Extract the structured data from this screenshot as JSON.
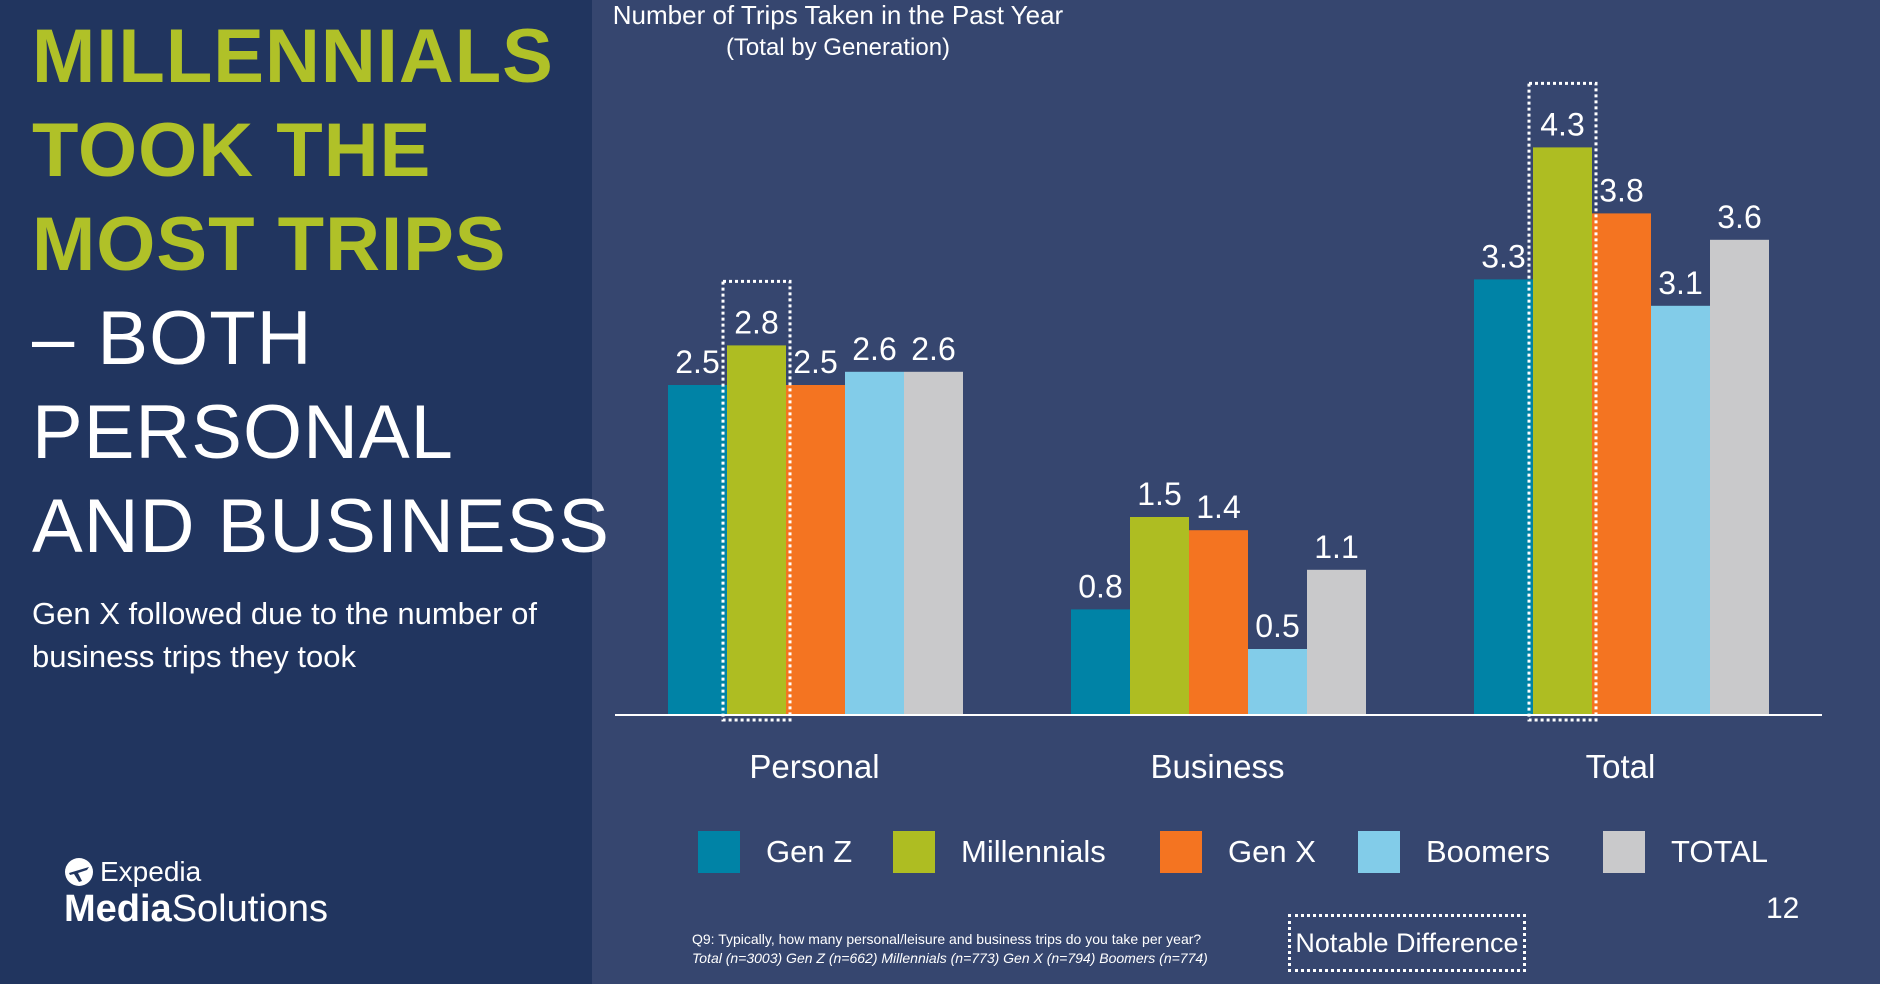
{
  "headline": {
    "accent_lines": [
      "MILLENNIALS",
      "TOOK THE",
      "MOST TRIPS"
    ],
    "white_lines": [
      "– BOTH",
      "PERSONAL",
      "AND BUSINESS"
    ]
  },
  "subtext": "Gen X followed due to the number of business trips they took",
  "logo": {
    "brand": "Expedia",
    "product_bold": "Media",
    "product_light": "Solutions"
  },
  "page_number": "12",
  "footnote": {
    "line1": "Q9: Typically, how many personal/leisure and business trips do you take per year?",
    "line2": "Total (n=3003) Gen Z (n=662) Millennials (n=773) Gen X (n=794) Boomers (n=774)"
  },
  "notable_label": "Notable Difference",
  "colors": {
    "gen_z": "#0083a6",
    "millennials": "#aebd22",
    "gen_x": "#f47421",
    "boomers": "#82cce9",
    "total": "#c9c9cb",
    "accent_text": "#b0c128"
  },
  "chart_data": {
    "type": "bar",
    "title": "Number of Trips Taken in the Past Year",
    "subtitle": "(Total by Generation)",
    "categories": [
      "Personal",
      "Business",
      "Total"
    ],
    "series": [
      {
        "name": "Gen Z",
        "values": [
          2.5,
          0.8,
          3.3
        ]
      },
      {
        "name": "Millennials",
        "values": [
          2.8,
          1.5,
          4.3
        ]
      },
      {
        "name": "Gen X",
        "values": [
          2.5,
          1.4,
          3.8
        ]
      },
      {
        "name": "Boomers",
        "values": [
          2.6,
          0.5,
          3.1
        ]
      },
      {
        "name": "TOTAL",
        "values": [
          2.6,
          1.1,
          3.6
        ]
      }
    ],
    "highlighted": [
      {
        "category": "Personal",
        "series": "Millennials"
      },
      {
        "category": "Total",
        "series": "Millennials"
      }
    ],
    "ylim": [
      0,
      4.5
    ],
    "grid": false,
    "legend_position": "bottom"
  }
}
